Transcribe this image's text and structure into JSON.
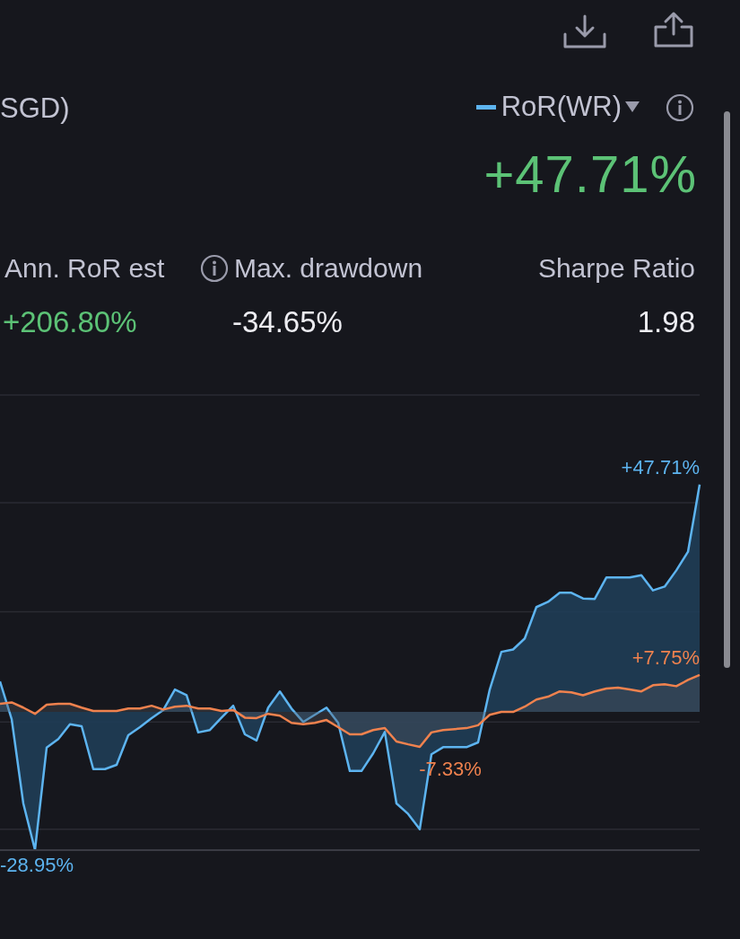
{
  "chart_data": {
    "type": "area",
    "title": "SGD)",
    "annotations": [
      "+47.71%",
      "Ann. RoR est",
      "+206.80%",
      "Max. drawdown",
      "-34.65%",
      "Sharpe Ratio",
      "1.98"
    ],
    "categories": [
      null,
      null,
      null,
      null,
      null,
      null,
      null,
      null,
      null,
      null,
      null,
      null,
      null,
      null,
      null,
      null,
      null,
      null,
      null,
      null,
      null,
      null,
      null,
      null,
      null,
      null,
      null,
      null,
      null,
      null,
      null,
      null,
      null,
      null,
      null,
      null,
      null,
      null,
      null,
      null,
      null,
      null,
      null,
      null,
      null,
      null,
      null,
      null,
      null,
      null,
      null,
      null,
      null,
      null,
      null,
      null,
      null,
      null,
      null,
      null,
      null
    ],
    "series": [
      {
        "name": "RoR(WR)",
        "color": "#5db4f0",
        "values": [
          6.4,
          -1.5,
          -19.2,
          -28.95,
          -7.5,
          -5.7,
          -2.6,
          -3.0,
          -12.0,
          -12.0,
          -11.1,
          -4.9,
          -3.2,
          -1.3,
          0.4,
          4.7,
          3.5,
          -4.3,
          -3.8,
          -1.2,
          1.3,
          -4.7,
          -6.0,
          0.9,
          4.3,
          0.7,
          -2.1,
          -0.6,
          0.9,
          -2.3,
          -12.4,
          -12.4,
          -8.7,
          -4.2,
          -19.2,
          -21.4,
          -24.6,
          -8.9,
          -7.4,
          -7.4,
          -7.4,
          -6.4,
          4.7,
          12.6,
          13.1,
          15.4,
          22.0,
          23.1,
          25.0,
          25.0,
          23.8,
          23.7,
          28.2,
          28.2,
          28.2,
          28.7,
          25.5,
          26.3,
          29.7,
          33.6,
          47.71
        ],
        "value_labels": [
          null,
          null,
          null,
          "-28.95%",
          null,
          null,
          null,
          null,
          null,
          null,
          null,
          null,
          null,
          null,
          null,
          null,
          null,
          null,
          null,
          null,
          null,
          null,
          null,
          null,
          null,
          null,
          null,
          null,
          null,
          null,
          null,
          null,
          null,
          null,
          null,
          null,
          null,
          null,
          null,
          null,
          null,
          null,
          null,
          null,
          null,
          null,
          null,
          null,
          null,
          null,
          null,
          null,
          null,
          null,
          null,
          null,
          null,
          null,
          null,
          null,
          "+47.71%"
        ]
      },
      {
        "color": "#f0824e",
        "values": [
          1.7,
          2.0,
          0.9,
          -0.4,
          1.5,
          1.7,
          1.7,
          0.9,
          0.2,
          0.2,
          0.2,
          0.7,
          0.7,
          1.3,
          0.5,
          1.1,
          1.3,
          0.7,
          0.7,
          0.2,
          0.4,
          -1.2,
          -1.3,
          -0.4,
          -0.8,
          -2.3,
          -2.6,
          -2.3,
          -1.7,
          -3.2,
          -4.7,
          -4.7,
          -3.8,
          -3.4,
          -6.2,
          -6.8,
          -7.33,
          -4.3,
          -3.8,
          -3.6,
          -3.4,
          -2.8,
          -0.6,
          0.0,
          0.0,
          1.1,
          2.6,
          3.2,
          4.3,
          4.1,
          3.5,
          4.3,
          4.9,
          5.1,
          4.7,
          4.3,
          5.6,
          5.8,
          5.4,
          6.7,
          7.75
        ],
        "value_labels": [
          null,
          null,
          null,
          null,
          null,
          null,
          null,
          null,
          null,
          null,
          null,
          null,
          null,
          null,
          null,
          null,
          null,
          null,
          null,
          null,
          null,
          null,
          null,
          null,
          null,
          null,
          null,
          null,
          null,
          null,
          null,
          null,
          null,
          null,
          null,
          null,
          "-7.33%",
          null,
          null,
          null,
          null,
          null,
          null,
          null,
          null,
          null,
          null,
          null,
          null,
          null,
          null,
          null,
          null,
          null,
          null,
          null,
          null,
          null,
          null,
          null,
          "+7.75%"
        ]
      }
    ],
    "ylim": [
      -29,
      66.5
    ],
    "yticks": [
      {
        "value": -24.6,
        "label": null
      },
      {
        "value": -2.1,
        "label": null
      },
      {
        "value": 21.0,
        "label": null
      },
      {
        "value": 43.9,
        "label": null
      },
      {
        "value": 66.5,
        "label": null
      }
    ],
    "grid": "y",
    "legend": "top right",
    "tick_labels": false,
    "marker": "none",
    "line_style": "solid"
  }
}
